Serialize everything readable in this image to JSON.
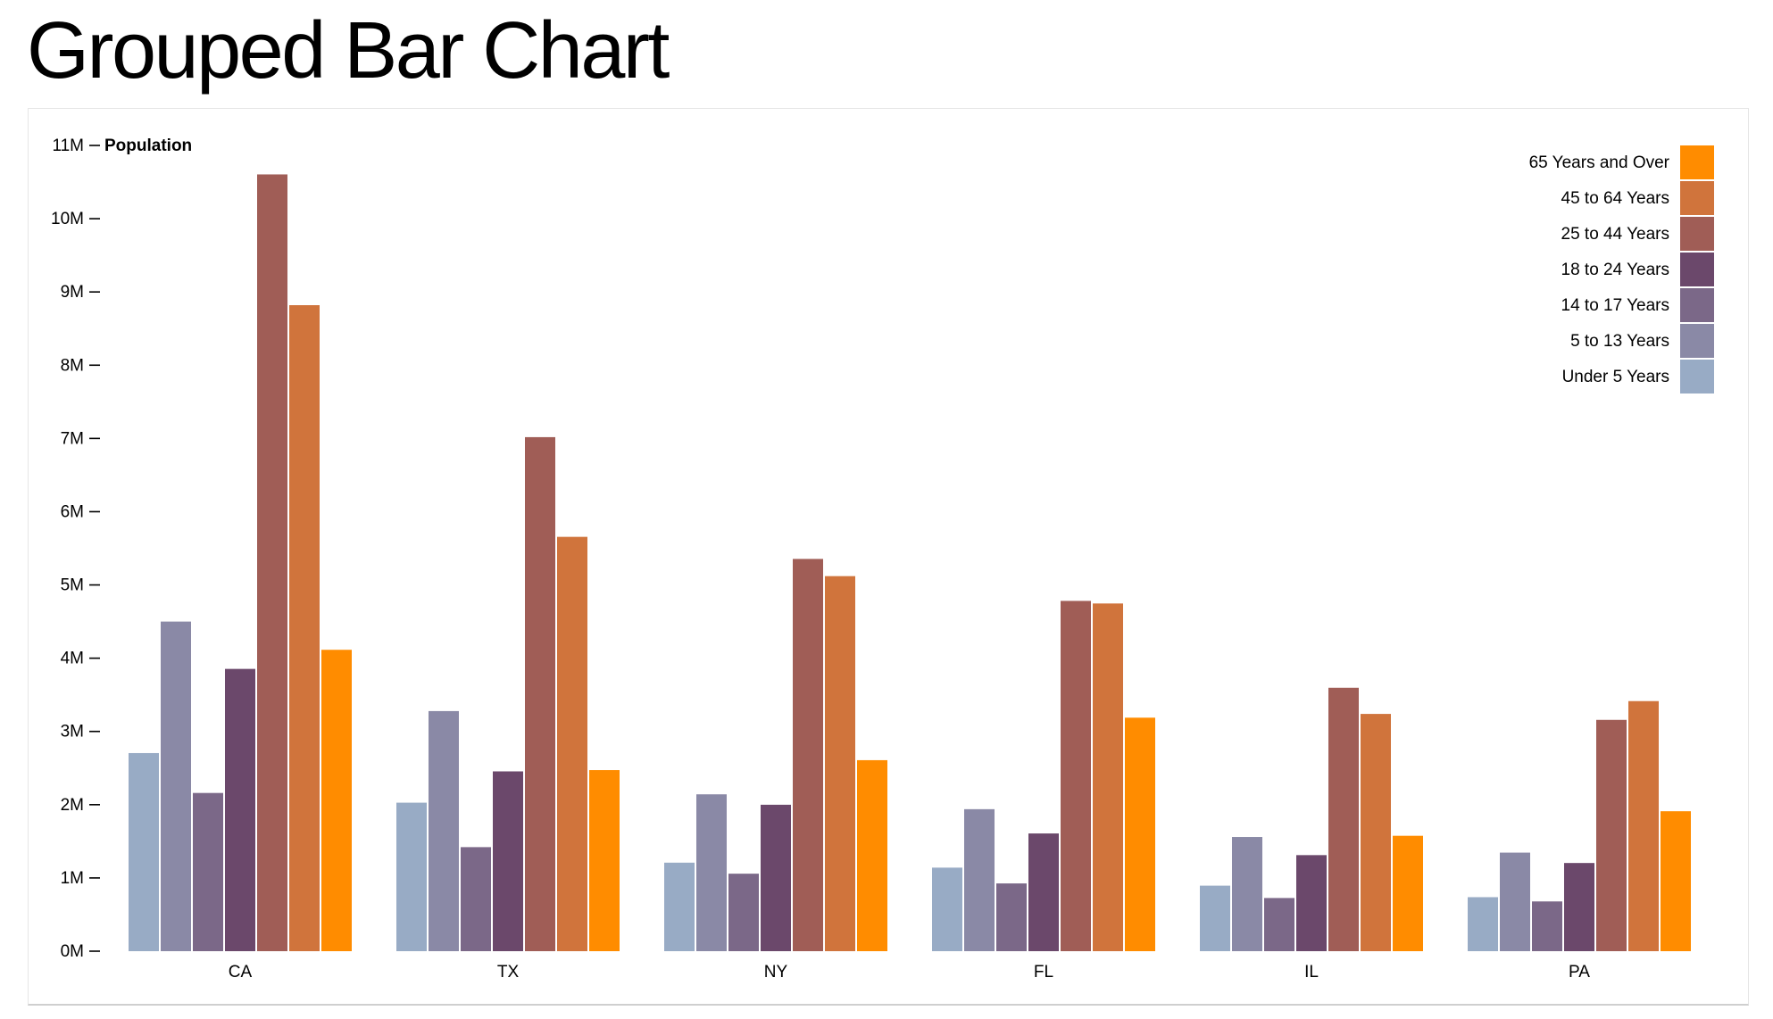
{
  "page": {
    "title": "Grouped Bar Chart"
  },
  "chart_data": {
    "type": "bar",
    "title": "",
    "ylabel": "Population",
    "xlabel": "",
    "ylim": [
      0,
      11000000
    ],
    "yticks": [
      "0M",
      "1M",
      "2M",
      "3M",
      "4M",
      "5M",
      "6M",
      "7M",
      "8M",
      "9M",
      "10M",
      "11M"
    ],
    "categories": [
      "CA",
      "TX",
      "NY",
      "FL",
      "IL",
      "PA"
    ],
    "legend_position": "top-right",
    "legend_order": [
      "65 Years and Over",
      "45 to 64 Years",
      "25 to 44 Years",
      "18 to 24 Years",
      "14 to 17 Years",
      "5 to 13 Years",
      "Under 5 Years"
    ],
    "series": [
      {
        "name": "Under 5 Years",
        "color": "#98abc5",
        "values": [
          2704659,
          2027307,
          1208495,
          1140516,
          894368,
          737462
        ]
      },
      {
        "name": "5 to 13 Years",
        "color": "#8a89a6",
        "values": [
          4499890,
          3277946,
          2141490,
          1938695,
          1558919,
          1345341
        ]
      },
      {
        "name": "14 to 17 Years",
        "color": "#7b6888",
        "values": [
          2159981,
          1420518,
          1058031,
          925060,
          725973,
          679201
        ]
      },
      {
        "name": "18 to 24 Years",
        "color": "#6b486b",
        "values": [
          3853788,
          2454721,
          1999120,
          1607297,
          1311479,
          1203944
        ]
      },
      {
        "name": "25 to 44 Years",
        "color": "#a05d56",
        "values": [
          10604510,
          7017731,
          5355235,
          4782119,
          3596343,
          3157759
        ]
      },
      {
        "name": "45 to 64 Years",
        "color": "#d0743c",
        "values": [
          8819342,
          5656528,
          5120254,
          4746856,
          3239173,
          3414001
        ]
      },
      {
        "name": "65 Years and Over",
        "color": "#ff8c00",
        "values": [
          4114496,
          2472223,
          2607672,
          3187797,
          1575308,
          1910571
        ]
      }
    ]
  }
}
